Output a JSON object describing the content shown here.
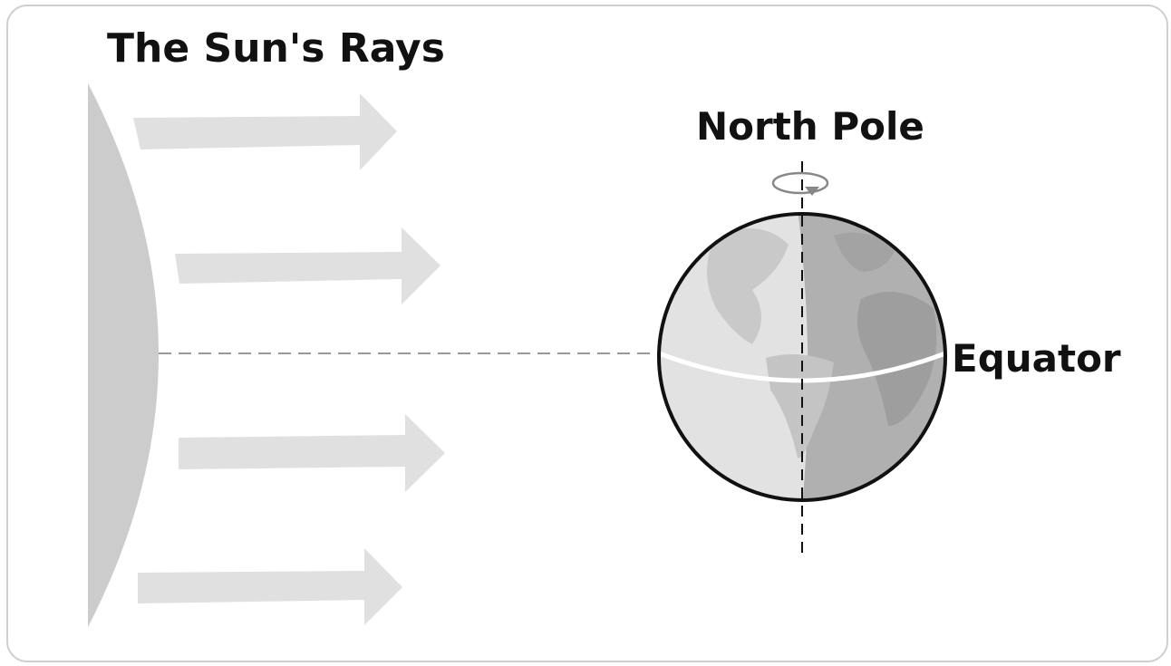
{
  "labels": {
    "title": "The Sun's Rays",
    "north_pole": "North Pole",
    "equator": "Equator"
  }
}
